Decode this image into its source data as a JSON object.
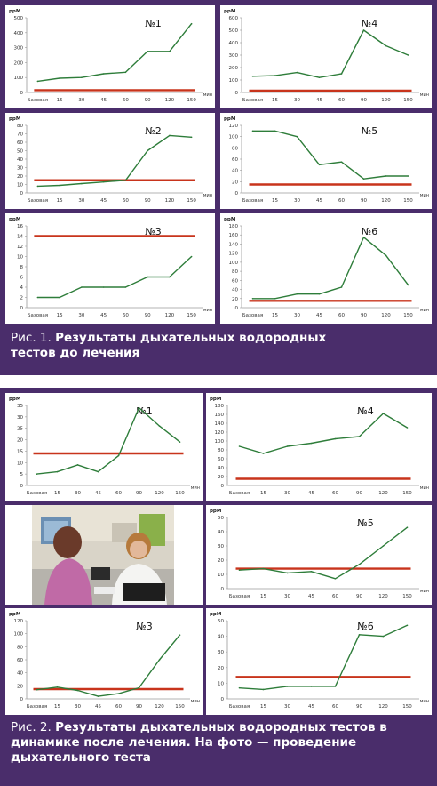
{
  "figures": [
    {
      "caption_prefix": "Рис. 1.",
      "caption_text": "Результаты дыхательных водородных тестов до лечения"
    },
    {
      "caption_prefix": "Рис. 2.",
      "caption_text": "Результаты дыхательных водородных тестов в динамике после лечения. На фото — проведение дыхательного теста"
    }
  ],
  "colors": {
    "frame": "#4a2d6b",
    "line": "#2e7d3a",
    "baseline": "#c8341c"
  },
  "photo": {
    "icon": "photo-breath-test"
  },
  "chart_data": [
    {
      "type": "line",
      "figure": 1,
      "title": "№1",
      "ylabel": "ppM",
      "xunit": "мин",
      "categories": [
        "Базовая",
        "15",
        "30",
        "45",
        "60",
        "90",
        "120",
        "150"
      ],
      "ylim": [
        0,
        500
      ],
      "yticks": [
        0,
        100,
        200,
        300,
        400,
        500
      ],
      "series": [
        {
          "values": [
            75,
            95,
            100,
            125,
            135,
            275,
            275,
            460
          ]
        }
      ],
      "reference": 15
    },
    {
      "type": "line",
      "figure": 1,
      "title": "№4",
      "ylabel": "ppM",
      "xunit": "мин",
      "categories": [
        "Базовая",
        "15",
        "30",
        "45",
        "60",
        "90",
        "120",
        "150"
      ],
      "ylim": [
        0,
        600
      ],
      "yticks": [
        0,
        100,
        200,
        300,
        400,
        500,
        600
      ],
      "series": [
        {
          "values": [
            130,
            135,
            160,
            120,
            150,
            500,
            375,
            300
          ]
        }
      ],
      "reference": 15
    },
    {
      "type": "line",
      "figure": 1,
      "title": "№2",
      "ylabel": "ppM",
      "xunit": "мин",
      "categories": [
        "Базовая",
        "15",
        "30",
        "45",
        "60",
        "90",
        "120",
        "150"
      ],
      "ylim": [
        0,
        80
      ],
      "yticks": [
        0,
        10,
        20,
        30,
        40,
        50,
        60,
        70,
        80
      ],
      "series": [
        {
          "values": [
            8,
            9,
            11,
            13,
            15,
            50,
            68,
            66
          ]
        }
      ],
      "reference": 15
    },
    {
      "type": "line",
      "figure": 1,
      "title": "№5",
      "ylabel": "ppM",
      "xunit": "мин",
      "categories": [
        "Базовая",
        "15",
        "30",
        "45",
        "60",
        "90",
        "120",
        "150"
      ],
      "ylim": [
        0,
        120
      ],
      "yticks": [
        0,
        20,
        40,
        60,
        80,
        100,
        120
      ],
      "series": [
        {
          "values": [
            110,
            110,
            100,
            50,
            55,
            25,
            30,
            30
          ]
        }
      ],
      "reference": 15
    },
    {
      "type": "line",
      "figure": 1,
      "title": "№3",
      "ylabel": "ppM",
      "xunit": "мин",
      "categories": [
        "Базовая",
        "15",
        "30",
        "45",
        "60",
        "90",
        "120",
        "150"
      ],
      "ylim": [
        0,
        16
      ],
      "yticks": [
        0,
        2,
        4,
        6,
        8,
        10,
        12,
        14,
        16
      ],
      "series": [
        {
          "values": [
            2,
            2,
            4,
            4,
            4,
            6,
            6,
            10
          ]
        }
      ],
      "reference": 14
    },
    {
      "type": "line",
      "figure": 1,
      "title": "№6",
      "ylabel": "ppM",
      "xunit": "мин",
      "categories": [
        "Базовая",
        "15",
        "30",
        "45",
        "60",
        "90",
        "120",
        "150"
      ],
      "ylim": [
        0,
        180
      ],
      "yticks": [
        0,
        20,
        40,
        60,
        80,
        100,
        120,
        140,
        160,
        180
      ],
      "series": [
        {
          "values": [
            20,
            20,
            30,
            30,
            45,
            155,
            115,
            50
          ]
        }
      ],
      "reference": 15
    },
    {
      "type": "line",
      "figure": 2,
      "title": "№1",
      "ylabel": "ppM",
      "xunit": "мин",
      "categories": [
        "Базовая",
        "15",
        "30",
        "45",
        "60",
        "90",
        "120",
        "150"
      ],
      "ylim": [
        0,
        35
      ],
      "yticks": [
        0,
        5,
        10,
        15,
        20,
        25,
        30,
        35
      ],
      "series": [
        {
          "values": [
            5,
            6,
            9,
            6,
            13,
            34,
            26,
            19
          ]
        }
      ],
      "reference": 14
    },
    {
      "type": "line",
      "figure": 2,
      "title": "№4",
      "ylabel": "ppM",
      "xunit": "мин",
      "categories": [
        "Базовая",
        "15",
        "30",
        "45",
        "60",
        "90",
        "120",
        "150"
      ],
      "ylim": [
        0,
        180
      ],
      "yticks": [
        0,
        20,
        40,
        60,
        80,
        100,
        120,
        140,
        160,
        180
      ],
      "series": [
        {
          "values": [
            88,
            72,
            88,
            95,
            105,
            110,
            162,
            130
          ]
        }
      ],
      "reference": 15
    },
    {
      "type": "line",
      "figure": 2,
      "title": "№5",
      "ylabel": "ppM",
      "xunit": "мин",
      "categories": [
        "Базовая",
        "15",
        "30",
        "45",
        "60",
        "90",
        "120",
        "150"
      ],
      "ylim": [
        0,
        50
      ],
      "yticks": [
        0,
        10,
        20,
        30,
        40,
        50
      ],
      "series": [
        {
          "values": [
            13,
            14,
            11,
            12,
            7,
            17,
            30,
            43
          ]
        }
      ],
      "reference": 14
    },
    {
      "type": "line",
      "figure": 2,
      "title": "№3",
      "ylabel": "ppM",
      "xunit": "мин",
      "categories": [
        "Базовая",
        "15",
        "30",
        "45",
        "60",
        "90",
        "120",
        "150"
      ],
      "ylim": [
        0,
        120
      ],
      "yticks": [
        0,
        20,
        40,
        60,
        80,
        100,
        120
      ],
      "series": [
        {
          "values": [
            14,
            18,
            13,
            4,
            8,
            17,
            60,
            98
          ]
        }
      ],
      "reference": 15
    },
    {
      "type": "line",
      "figure": 2,
      "title": "№6",
      "ylabel": "ppM",
      "xunit": "мин",
      "categories": [
        "Базовая",
        "15",
        "30",
        "45",
        "60",
        "90",
        "120",
        "150"
      ],
      "ylim": [
        0,
        50
      ],
      "yticks": [
        0,
        10,
        20,
        30,
        40,
        50
      ],
      "series": [
        {
          "values": [
            7,
            6,
            8,
            8,
            8,
            41,
            40,
            47
          ]
        }
      ],
      "reference": 14
    }
  ]
}
